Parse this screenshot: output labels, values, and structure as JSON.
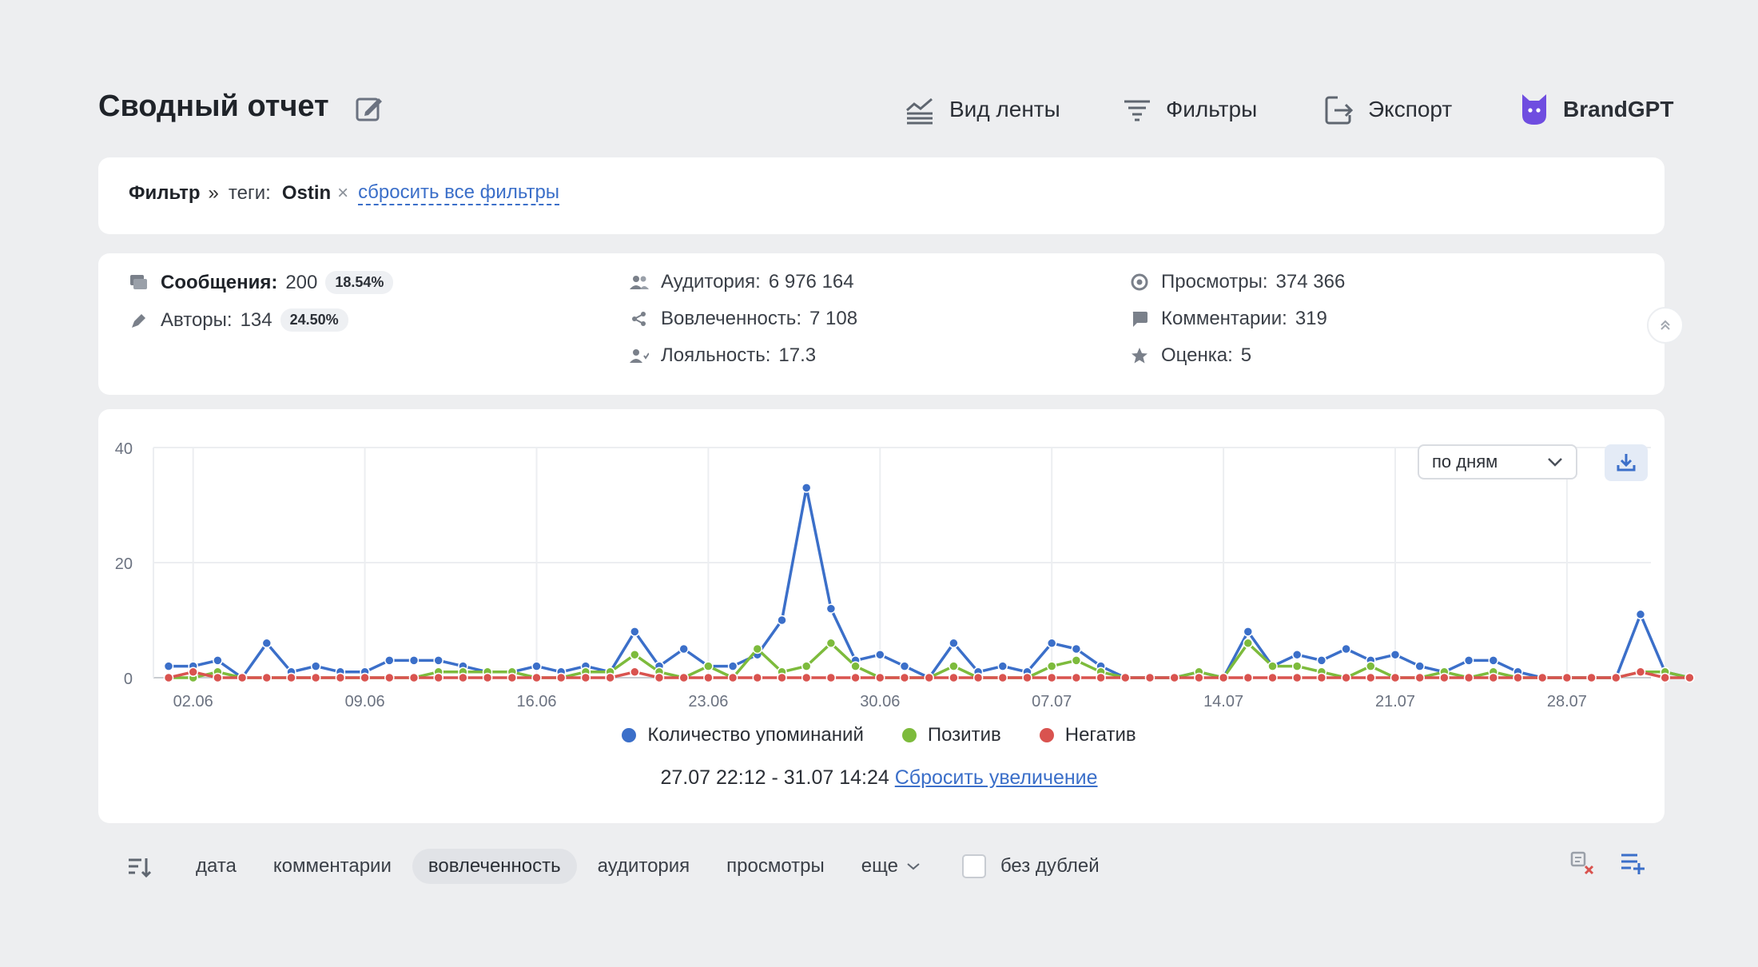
{
  "header": {
    "title": "Сводный отчет",
    "buttons": {
      "feed_view": "Вид ленты",
      "filters": "Фильтры",
      "export": "Экспорт",
      "brand": "BrandGPT"
    }
  },
  "filter": {
    "label": "Фильтр",
    "arrow": "»",
    "tag_key": "теги:",
    "tag_value": "Ostin",
    "remove": "×",
    "reset_all": "сбросить все фильтры"
  },
  "stats": {
    "messages": {
      "label": "Сообщения:",
      "value": "200",
      "pct": "18.54%"
    },
    "authors": {
      "label": "Авторы:",
      "value": "134",
      "pct": "24.50%"
    },
    "audience": {
      "label": "Аудитория:",
      "value": "6 976 164"
    },
    "engagement": {
      "label": "Вовлеченность:",
      "value": "7 108"
    },
    "loyalty": {
      "label": "Лояльность:",
      "value": "17.3"
    },
    "views": {
      "label": "Просмотры:",
      "value": "374 366"
    },
    "comments": {
      "label": "Комментарии:",
      "value": "319"
    },
    "rating": {
      "label": "Оценка:",
      "value": "5"
    }
  },
  "chart_controls": {
    "period": "по дням"
  },
  "chart_data": {
    "type": "line",
    "ylim": [
      0,
      40
    ],
    "yticks": [
      "0",
      "20",
      "40"
    ],
    "xtick_labels": [
      "02.06",
      "09.06",
      "16.06",
      "23.06",
      "30.06",
      "07.07",
      "14.07",
      "21.07",
      "28.07"
    ],
    "grid": true,
    "legend_position": "bottom-center",
    "series": [
      {
        "name": "Количество упоминаний",
        "color": "#3b6fc9",
        "values": [
          2,
          2,
          3,
          0,
          6,
          1,
          2,
          1,
          1,
          3,
          3,
          3,
          2,
          1,
          1,
          2,
          1,
          2,
          1,
          8,
          2,
          5,
          2,
          2,
          4,
          10,
          33,
          12,
          3,
          4,
          2,
          0,
          6,
          1,
          2,
          1,
          6,
          5,
          2,
          0,
          0,
          0,
          1,
          0,
          8,
          2,
          4,
          3,
          5,
          3,
          4,
          2,
          1,
          3,
          3,
          1,
          0,
          0,
          0,
          0,
          11,
          1,
          0
        ]
      },
      {
        "name": "Позитив",
        "color": "#7dbb3c",
        "values": [
          0,
          0,
          1,
          0,
          0,
          0,
          0,
          0,
          0,
          0,
          0,
          1,
          1,
          1,
          1,
          0,
          0,
          1,
          1,
          4,
          1,
          0,
          2,
          0,
          5,
          1,
          2,
          6,
          2,
          0,
          0,
          0,
          2,
          0,
          0,
          0,
          2,
          3,
          1,
          0,
          0,
          0,
          1,
          0,
          6,
          2,
          2,
          1,
          0,
          2,
          0,
          0,
          1,
          0,
          1,
          0,
          0,
          0,
          0,
          0,
          1,
          1,
          0
        ]
      },
      {
        "name": "Негатив",
        "color": "#d9534f",
        "values": [
          0,
          1,
          0,
          0,
          0,
          0,
          0,
          0,
          0,
          0,
          0,
          0,
          0,
          0,
          0,
          0,
          0,
          0,
          0,
          1,
          0,
          0,
          0,
          0,
          0,
          0,
          0,
          0,
          0,
          0,
          0,
          0,
          0,
          0,
          0,
          0,
          0,
          0,
          0,
          0,
          0,
          0,
          0,
          0,
          0,
          0,
          0,
          0,
          0,
          0,
          0,
          0,
          0,
          0,
          0,
          0,
          0,
          0,
          0,
          0,
          1,
          0,
          0
        ]
      }
    ]
  },
  "zoom": {
    "range": "27.07 22:12 - 31.07 14:24",
    "reset": "Сбросить увеличение"
  },
  "sort": {
    "items": [
      "дата",
      "комментарии",
      "вовлеченность",
      "аудитория",
      "просмотры"
    ],
    "active": "вовлеченность",
    "more": "еще",
    "no_duplicates": "без дублей"
  }
}
